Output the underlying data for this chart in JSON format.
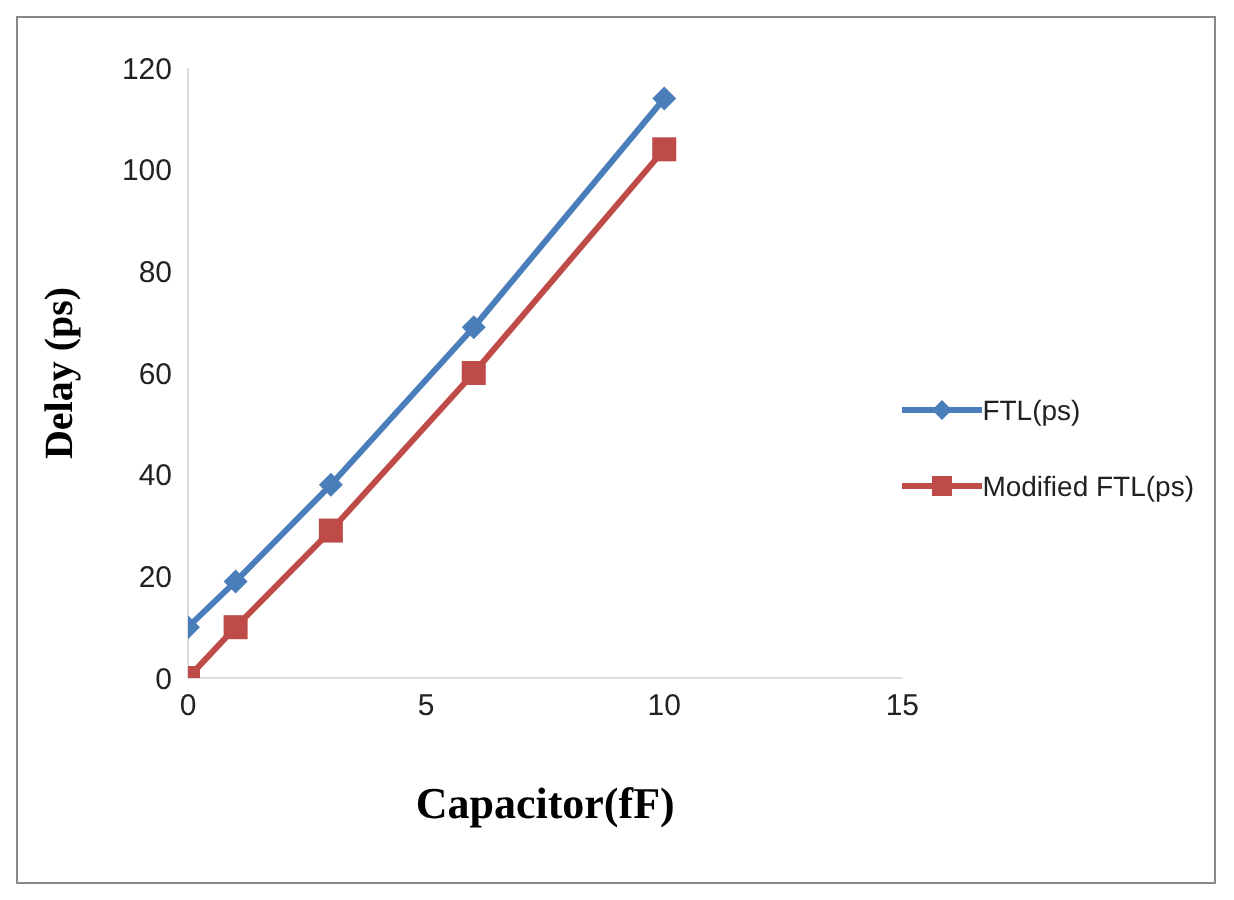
{
  "chart_data": {
    "type": "line",
    "xlabel": "Capacitor(fF)",
    "ylabel": "Delay (ps)",
    "x": [
      0,
      1,
      3,
      6,
      10
    ],
    "series": [
      {
        "name": "FTL(ps)",
        "color": "#4a7ebb",
        "marker": "diamond",
        "values": [
          10,
          19,
          38,
          69,
          114
        ]
      },
      {
        "name": "Modified FTL(ps)",
        "color": "#be4b48",
        "marker": "square",
        "values": [
          0,
          10,
          29,
          60,
          104
        ]
      }
    ],
    "xlim": [
      0,
      15
    ],
    "xticks": [
      0,
      5,
      10,
      15
    ],
    "ylim": [
      0,
      120
    ],
    "yticks": [
      0,
      20,
      40,
      60,
      80,
      100,
      120
    ],
    "grid": false,
    "legend": "right",
    "line_style": "solid"
  }
}
